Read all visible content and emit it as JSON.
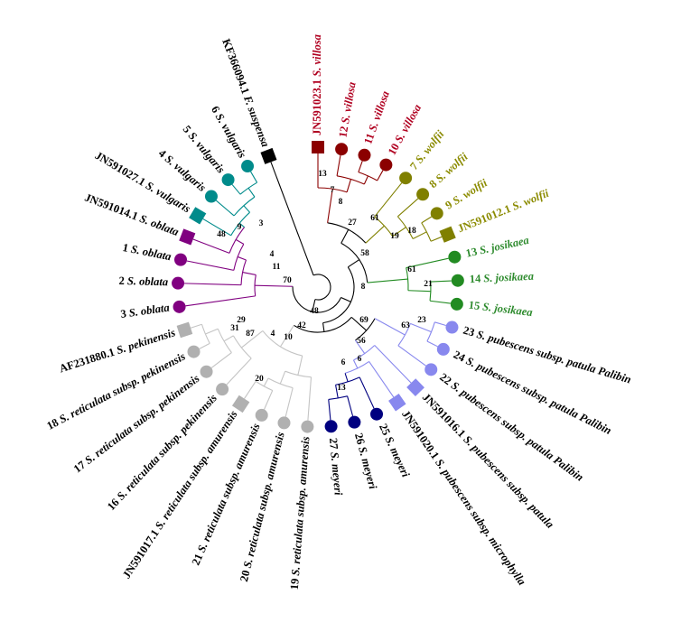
{
  "leaves": [
    {
      "id": "KF366094.1",
      "name": "F. suspensa"
    },
    {
      "id": "JN591023.1",
      "name": "S. villosa"
    },
    {
      "id": "12",
      "name": "S. villosa"
    },
    {
      "id": "11",
      "name": "S. villosa"
    },
    {
      "id": "10",
      "name": "S. villosa"
    },
    {
      "id": "7",
      "name": "S. wolfii"
    },
    {
      "id": "8",
      "name": "S. wolfii"
    },
    {
      "id": "9",
      "name": "S. wolfii"
    },
    {
      "id": "JN591012.1",
      "name": "S. wolfii"
    },
    {
      "id": "13",
      "name": "S. josikaea"
    },
    {
      "id": "14",
      "name": "S. josikaea"
    },
    {
      "id": "15",
      "name": "S. josikaea"
    },
    {
      "id": "23",
      "name": "S. pubescens subsp. patula Palibin"
    },
    {
      "id": "24",
      "name": "S. pubescens subsp. patula Palibin"
    },
    {
      "id": "22",
      "name": "S. pubescens subsp. patula Palibin"
    },
    {
      "id": "JN591016.1",
      "name": "S. pubescens subsp. patula"
    },
    {
      "id": "JN591020.1",
      "name": "S. pubescens subsp. microphylla"
    },
    {
      "id": "25",
      "name": "S. meyeri"
    },
    {
      "id": "26",
      "name": "S. meyeri"
    },
    {
      "id": "27",
      "name": "S. meyeri"
    },
    {
      "id": "19",
      "name": "S. reticulata subsp. amurensis"
    },
    {
      "id": "20",
      "name": "S. reticulata subsp. amurensis"
    },
    {
      "id": "21",
      "name": "S. reticulata subsp. amurensis"
    },
    {
      "id": "JN591017.1",
      "name": "S. reticulata subsp. amurensis"
    },
    {
      "id": "16",
      "name": "S. reticulata subsp. pekinensis"
    },
    {
      "id": "17",
      "name": "S. reticulata subsp. pekinensis"
    },
    {
      "id": "18",
      "name": "S. reticulata subsp. pekinensis"
    },
    {
      "id": "AF231880.1",
      "name": "S. pekinensis"
    },
    {
      "id": "3",
      "name": "S. oblata"
    },
    {
      "id": "2",
      "name": "S. oblata"
    },
    {
      "id": "1",
      "name": "S. oblata"
    },
    {
      "id": "JN591014.1",
      "name": "S. oblata"
    },
    {
      "id": "JN591027.1",
      "name": "S. vulgaris"
    },
    {
      "id": "4",
      "name": "S. vulgaris"
    },
    {
      "id": "5",
      "name": "S. vulgaris"
    },
    {
      "id": "6",
      "name": "S. vulgaris"
    }
  ],
  "bootstrap": [
    13,
    7,
    8,
    27,
    61,
    19,
    18,
    58,
    8,
    61,
    21,
    69,
    63,
    23,
    56,
    6,
    6,
    13,
    48,
    42,
    10,
    4,
    20,
    87,
    31,
    29,
    70,
    11,
    4,
    3,
    9,
    48
  ]
}
